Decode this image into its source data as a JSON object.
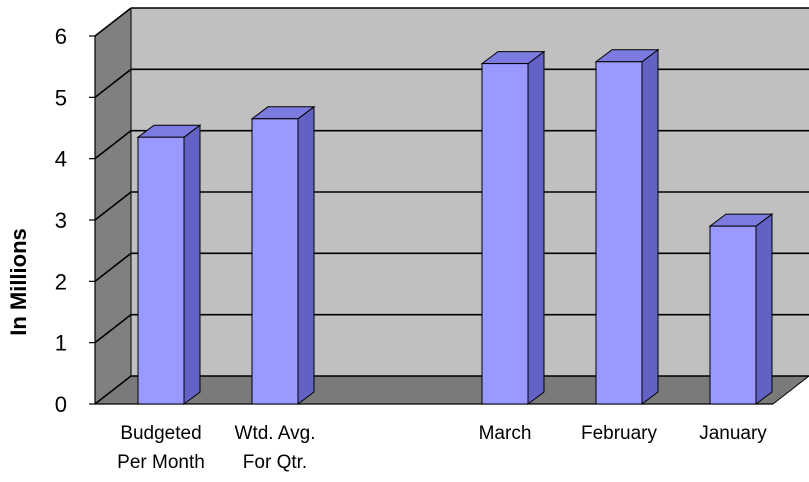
{
  "chart_data": {
    "type": "bar",
    "xlabel": "",
    "ylabel": "In Millions",
    "ylim": [
      0,
      6
    ],
    "yticks": [
      "0",
      "1",
      "2",
      "3",
      "4",
      "5",
      "6"
    ],
    "grid": true,
    "categories": [
      [
        "Budgeted",
        "Per Month"
      ],
      [
        "Wtd. Avg.",
        "For Qtr."
      ],
      [
        "March"
      ],
      [
        "February"
      ],
      [
        "January"
      ]
    ],
    "values": [
      4.35,
      4.65,
      5.55,
      5.58,
      2.9
    ],
    "colors": {
      "bar_front": "#9999ff",
      "bar_side": "#6262c4",
      "bar_top": "#7b7be0",
      "back_wall": "#c0c0c0",
      "side_wall": "#808080",
      "floor": "#7a7a7a"
    }
  }
}
